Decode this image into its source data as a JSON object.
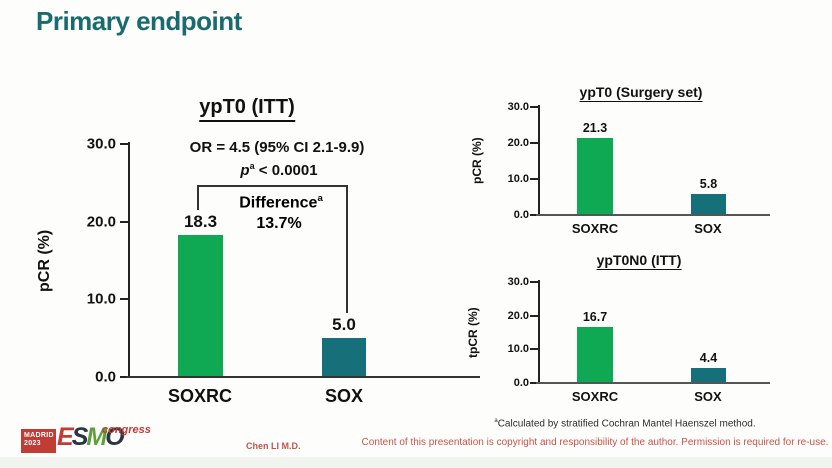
{
  "slide": {
    "title": "Primary endpoint",
    "presenter": "Chen LI M.D.",
    "copyright": "Content of this presentation is copyright and responsibility of the author. Permission is required for re-use.",
    "footnote_sup": "a",
    "footnote": "Calculated by stratified Cochran Mantel Haenszel method.",
    "logo": {
      "location": "MADRID",
      "year": "2023",
      "letters": [
        "E",
        "S",
        "M",
        "O"
      ],
      "suffix": "congress"
    }
  },
  "colors": {
    "title_teal": "#1a6b6e",
    "bar_green": "#10a953",
    "bar_teal": "#16707a",
    "footer_red": "#c4544c",
    "logo_red": "#c23c36"
  },
  "chart_data": [
    {
      "type": "bar",
      "title": "ypT0 (ITT)",
      "categories": [
        "SOXRC",
        "SOX"
      ],
      "values": [
        18.3,
        5.0
      ],
      "value_labels": [
        "18.3",
        "5.0"
      ],
      "bar_colors": [
        "#10a953",
        "#16707a"
      ],
      "ylabel": "pCR (%)",
      "ylim": [
        0,
        30
      ],
      "yticks": [
        "30.0",
        "20.0",
        "10.0",
        "0.0"
      ],
      "grid": "off",
      "legend": "none",
      "annotations": {
        "or": "OR = 4.5 (95% CI 2.1-9.9)",
        "p_prefix": "p",
        "p_sup": "a",
        "p_rest": " < 0.0001",
        "difference_label": "Difference",
        "difference_sup": "a",
        "difference_value": "13.7%"
      }
    },
    {
      "type": "bar",
      "title": "ypT0 (Surgery set)",
      "categories": [
        "SOXRC",
        "SOX"
      ],
      "values": [
        21.3,
        5.8
      ],
      "value_labels": [
        "21.3",
        "5.8"
      ],
      "bar_colors": [
        "#10a953",
        "#16707a"
      ],
      "ylabel": "pCR (%)",
      "ylim": [
        0,
        30
      ],
      "yticks": [
        "30.0",
        "20.0",
        "10.0",
        "0.0"
      ],
      "grid": "off",
      "legend": "none"
    },
    {
      "type": "bar",
      "title": "ypT0N0 (ITT)",
      "categories": [
        "SOXRC",
        "SOX"
      ],
      "values": [
        16.7,
        4.4
      ],
      "value_labels": [
        "16.7",
        "4.4"
      ],
      "bar_colors": [
        "#10a953",
        "#16707a"
      ],
      "ylabel": "tpCR (%)",
      "ylim": [
        0,
        30
      ],
      "yticks": [
        "30.0",
        "20.0",
        "10.0",
        "0.0"
      ],
      "grid": "off",
      "legend": "none"
    }
  ]
}
